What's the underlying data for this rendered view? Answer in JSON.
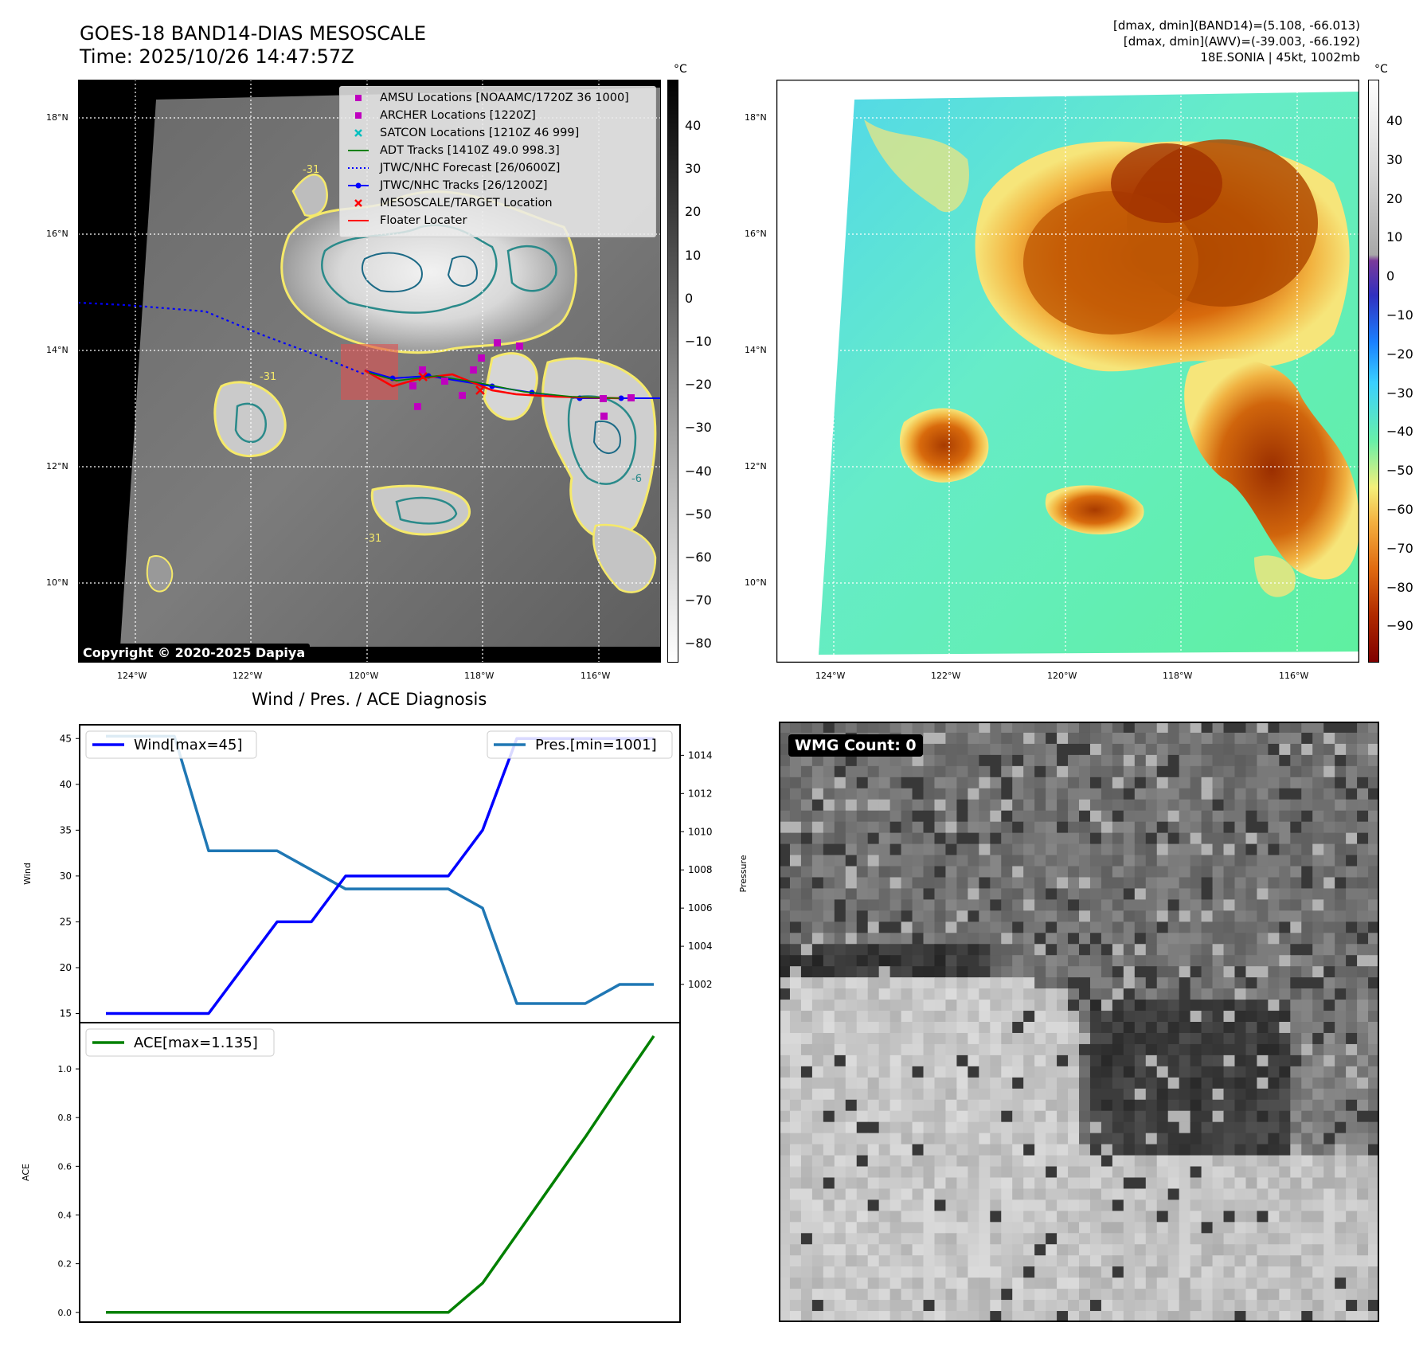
{
  "header": {
    "title_line1": "GOES-18 BAND14-DIAS MESOSCALE",
    "title_line2": "Time: 2025/10/26 14:47:57Z",
    "info_line1": "[dmax, dmin](BAND14)=(5.108, -66.013)",
    "info_line2": "[dmax, dmin](AWV)=(-39.003, -66.192)",
    "info_line3": "18E.SONIA | 45kt, 1002mb"
  },
  "map": {
    "lat_labels": [
      "18°N",
      "16°N",
      "14°N",
      "12°N",
      "10°N"
    ],
    "lon_labels": [
      "124°W",
      "122°W",
      "120°W",
      "118°W",
      "116°W"
    ],
    "copyright": "Copyright © 2020-2025 Dapiya",
    "contour_labels": [
      "-31",
      "-31",
      "-6",
      "-31"
    ],
    "legend": [
      {
        "label": "AMSU Locations [NOAAMC/1720Z 36 1000]",
        "color": "#bf00bf"
      },
      {
        "label": "ARCHER Locations [1220Z]",
        "color": "#bf00bf"
      },
      {
        "label": "SATCON Locations [1210Z 46 999]",
        "color": "#00bfbf"
      },
      {
        "label": "ADT Tracks [1410Z 49.0 998.3]",
        "color": "#008000"
      },
      {
        "label": "JTWC/NHC Forecast [26/0600Z]",
        "color": "#0000ff"
      },
      {
        "label": "JTWC/NHC Tracks [26/1200Z]",
        "color": "#0000ff"
      },
      {
        "label": "MESOSCALE/TARGET Location",
        "color": "#ff0000"
      },
      {
        "label": "Floater Locater",
        "color": "#ff0000"
      }
    ]
  },
  "colorbar_gray": {
    "unit": "°C",
    "ticks": [
      "40",
      "30",
      "20",
      "10",
      "0",
      "−10",
      "−20",
      "−30",
      "−40",
      "−50",
      "−60",
      "−70",
      "−80"
    ]
  },
  "colorbar_color": {
    "unit": "°C",
    "ticks": [
      "40",
      "30",
      "20",
      "10",
      "0",
      "−10",
      "−20",
      "−30",
      "−40",
      "−50",
      "−60",
      "−70",
      "−80",
      "−90"
    ]
  },
  "wmg": {
    "label": "WMG Count: 0"
  },
  "colors": {
    "wind": "#0000ff",
    "pressure": "#1f77b4",
    "ace": "#008000"
  },
  "chart_data": [
    {
      "type": "line",
      "title": "Wind / Pres. / ACE Diagnosis",
      "ylabel": "Wind",
      "y2label": "Pressure",
      "ylim": [
        14,
        46.5
      ],
      "y2lim": [
        1000.0,
        1015.6
      ],
      "yticks": [
        "45",
        "40",
        "35",
        "30",
        "25",
        "20",
        "15"
      ],
      "y2ticks": [
        "1014",
        "1012",
        "1010",
        "1008",
        "1006",
        "1004",
        "1002"
      ],
      "series": [
        {
          "name": "Wind[max=45]",
          "axis": "left",
          "values": [
            15,
            15,
            15,
            15,
            20,
            25,
            25,
            30,
            30,
            30,
            30,
            35,
            45,
            45,
            45,
            45,
            45
          ]
        },
        {
          "name": "Pres.[min=1001]",
          "axis": "right",
          "values": [
            1015,
            1015,
            1015,
            1009,
            1009,
            1009,
            1008,
            1007,
            1007,
            1007,
            1007,
            1006,
            1001,
            1001,
            1001,
            1002,
            1002
          ]
        }
      ]
    },
    {
      "type": "line",
      "ylabel": "ACE",
      "ylim": [
        -0.04,
        1.19
      ],
      "yticks": [
        "1.0",
        "0.8",
        "0.6",
        "0.4",
        "0.2",
        "0.0"
      ],
      "series": [
        {
          "name": "ACE[max=1.135]",
          "values": [
            0,
            0,
            0,
            0,
            0,
            0,
            0,
            0,
            0,
            0,
            0,
            0.12,
            0.32,
            0.52,
            0.72,
            0.93,
            1.135
          ]
        }
      ]
    }
  ]
}
